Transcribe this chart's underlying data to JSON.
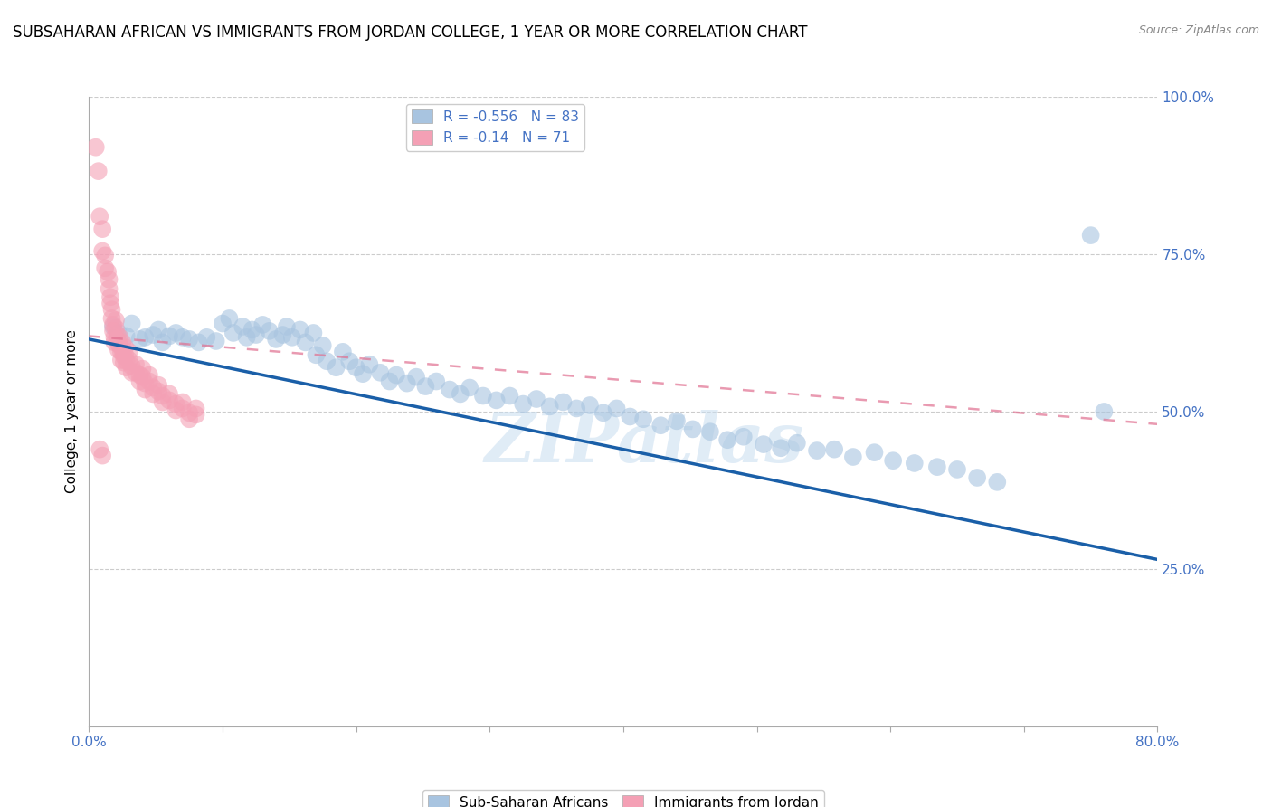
{
  "title": "SUBSAHARAN AFRICAN VS IMMIGRANTS FROM JORDAN COLLEGE, 1 YEAR OR MORE CORRELATION CHART",
  "source": "Source: ZipAtlas.com",
  "ylabel": "College, 1 year or more",
  "xlim": [
    0.0,
    0.8
  ],
  "ylim": [
    0.0,
    1.0
  ],
  "ytick_positions": [
    0.25,
    0.5,
    0.75,
    1.0
  ],
  "ytick_labels": [
    "25.0%",
    "50.0%",
    "75.0%",
    "100.0%"
  ],
  "blue_R": -0.556,
  "blue_N": 83,
  "pink_R": -0.14,
  "pink_N": 71,
  "blue_color": "#a8c4e0",
  "blue_line_color": "#1a5fa8",
  "pink_color": "#f4a0b5",
  "pink_line_color": "#e07090",
  "blue_line": {
    "x0": 0.0,
    "y0": 0.615,
    "x1": 0.8,
    "y1": 0.265
  },
  "pink_line": {
    "x0": 0.0,
    "y0": 0.62,
    "x1": 0.8,
    "y1": 0.48
  },
  "blue_scatter": [
    [
      0.018,
      0.635
    ],
    [
      0.022,
      0.625
    ],
    [
      0.028,
      0.62
    ],
    [
      0.032,
      0.64
    ],
    [
      0.038,
      0.615
    ],
    [
      0.042,
      0.618
    ],
    [
      0.048,
      0.622
    ],
    [
      0.052,
      0.63
    ],
    [
      0.055,
      0.61
    ],
    [
      0.06,
      0.62
    ],
    [
      0.065,
      0.625
    ],
    [
      0.07,
      0.618
    ],
    [
      0.075,
      0.615
    ],
    [
      0.082,
      0.61
    ],
    [
      0.088,
      0.618
    ],
    [
      0.095,
      0.612
    ],
    [
      0.1,
      0.64
    ],
    [
      0.105,
      0.648
    ],
    [
      0.108,
      0.625
    ],
    [
      0.115,
      0.635
    ],
    [
      0.118,
      0.618
    ],
    [
      0.122,
      0.63
    ],
    [
      0.125,
      0.622
    ],
    [
      0.13,
      0.638
    ],
    [
      0.135,
      0.628
    ],
    [
      0.14,
      0.615
    ],
    [
      0.145,
      0.622
    ],
    [
      0.148,
      0.635
    ],
    [
      0.152,
      0.618
    ],
    [
      0.158,
      0.63
    ],
    [
      0.162,
      0.61
    ],
    [
      0.168,
      0.625
    ],
    [
      0.17,
      0.59
    ],
    [
      0.175,
      0.605
    ],
    [
      0.178,
      0.58
    ],
    [
      0.185,
      0.57
    ],
    [
      0.19,
      0.595
    ],
    [
      0.195,
      0.58
    ],
    [
      0.2,
      0.57
    ],
    [
      0.205,
      0.56
    ],
    [
      0.21,
      0.575
    ],
    [
      0.218,
      0.562
    ],
    [
      0.225,
      0.548
    ],
    [
      0.23,
      0.558
    ],
    [
      0.238,
      0.545
    ],
    [
      0.245,
      0.555
    ],
    [
      0.252,
      0.54
    ],
    [
      0.26,
      0.548
    ],
    [
      0.27,
      0.535
    ],
    [
      0.278,
      0.528
    ],
    [
      0.285,
      0.538
    ],
    [
      0.295,
      0.525
    ],
    [
      0.305,
      0.518
    ],
    [
      0.315,
      0.525
    ],
    [
      0.325,
      0.512
    ],
    [
      0.335,
      0.52
    ],
    [
      0.345,
      0.508
    ],
    [
      0.355,
      0.515
    ],
    [
      0.365,
      0.505
    ],
    [
      0.375,
      0.51
    ],
    [
      0.385,
      0.498
    ],
    [
      0.395,
      0.505
    ],
    [
      0.405,
      0.492
    ],
    [
      0.415,
      0.488
    ],
    [
      0.428,
      0.478
    ],
    [
      0.44,
      0.485
    ],
    [
      0.452,
      0.472
    ],
    [
      0.465,
      0.468
    ],
    [
      0.478,
      0.455
    ],
    [
      0.49,
      0.46
    ],
    [
      0.505,
      0.448
    ],
    [
      0.518,
      0.442
    ],
    [
      0.53,
      0.45
    ],
    [
      0.545,
      0.438
    ],
    [
      0.558,
      0.44
    ],
    [
      0.572,
      0.428
    ],
    [
      0.588,
      0.435
    ],
    [
      0.602,
      0.422
    ],
    [
      0.618,
      0.418
    ],
    [
      0.635,
      0.412
    ],
    [
      0.65,
      0.408
    ],
    [
      0.665,
      0.395
    ],
    [
      0.68,
      0.388
    ],
    [
      0.75,
      0.78
    ],
    [
      0.76,
      0.5
    ]
  ],
  "pink_scatter": [
    [
      0.005,
      0.92
    ],
    [
      0.007,
      0.882
    ],
    [
      0.008,
      0.81
    ],
    [
      0.01,
      0.79
    ],
    [
      0.01,
      0.755
    ],
    [
      0.012,
      0.748
    ],
    [
      0.012,
      0.728
    ],
    [
      0.014,
      0.722
    ],
    [
      0.015,
      0.71
    ],
    [
      0.015,
      0.695
    ],
    [
      0.016,
      0.682
    ],
    [
      0.016,
      0.672
    ],
    [
      0.017,
      0.662
    ],
    [
      0.017,
      0.648
    ],
    [
      0.018,
      0.638
    ],
    [
      0.018,
      0.628
    ],
    [
      0.019,
      0.618
    ],
    [
      0.019,
      0.61
    ],
    [
      0.02,
      0.645
    ],
    [
      0.02,
      0.632
    ],
    [
      0.021,
      0.622
    ],
    [
      0.021,
      0.615
    ],
    [
      0.022,
      0.608
    ],
    [
      0.022,
      0.598
    ],
    [
      0.023,
      0.618
    ],
    [
      0.023,
      0.605
    ],
    [
      0.024,
      0.595
    ],
    [
      0.024,
      0.582
    ],
    [
      0.025,
      0.61
    ],
    [
      0.025,
      0.598
    ],
    [
      0.026,
      0.588
    ],
    [
      0.026,
      0.578
    ],
    [
      0.027,
      0.602
    ],
    [
      0.027,
      0.59
    ],
    [
      0.028,
      0.58
    ],
    [
      0.028,
      0.57
    ],
    [
      0.03,
      0.595
    ],
    [
      0.03,
      0.582
    ],
    [
      0.032,
      0.572
    ],
    [
      0.032,
      0.562
    ],
    [
      0.035,
      0.575
    ],
    [
      0.035,
      0.562
    ],
    [
      0.038,
      0.558
    ],
    [
      0.038,
      0.548
    ],
    [
      0.04,
      0.568
    ],
    [
      0.04,
      0.555
    ],
    [
      0.042,
      0.545
    ],
    [
      0.042,
      0.535
    ],
    [
      0.045,
      0.558
    ],
    [
      0.045,
      0.548
    ],
    [
      0.048,
      0.538
    ],
    [
      0.048,
      0.528
    ],
    [
      0.052,
      0.542
    ],
    [
      0.052,
      0.532
    ],
    [
      0.055,
      0.525
    ],
    [
      0.055,
      0.515
    ],
    [
      0.06,
      0.528
    ],
    [
      0.06,
      0.518
    ],
    [
      0.065,
      0.512
    ],
    [
      0.065,
      0.502
    ],
    [
      0.07,
      0.515
    ],
    [
      0.07,
      0.505
    ],
    [
      0.075,
      0.498
    ],
    [
      0.075,
      0.488
    ],
    [
      0.08,
      0.505
    ],
    [
      0.08,
      0.495
    ],
    [
      0.008,
      0.44
    ],
    [
      0.01,
      0.43
    ]
  ],
  "watermark": "ZIPatlas",
  "background_color": "#ffffff",
  "grid_color": "#cccccc",
  "title_fontsize": 12,
  "label_fontsize": 11,
  "tick_fontsize": 11,
  "legend_fontsize": 11
}
